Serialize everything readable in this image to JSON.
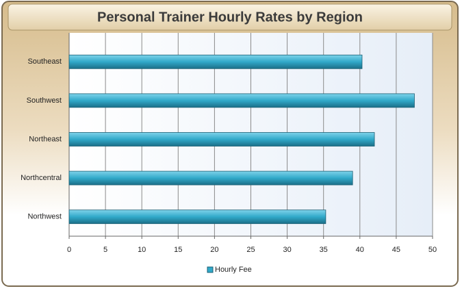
{
  "chart_data": {
    "type": "bar",
    "orientation": "horizontal",
    "title": "Personal Trainer Hourly Rates by Region",
    "categories": [
      "Southeast",
      "Southwest",
      "Northeast",
      "Northcentral",
      "Northwest"
    ],
    "series": [
      {
        "name": "Hourly Fee",
        "color": "#31a9c9",
        "values": [
          40.3,
          47.5,
          42,
          39,
          35.3
        ]
      }
    ],
    "xlim": [
      0,
      50
    ],
    "xticks": [
      0,
      5,
      10,
      15,
      20,
      25,
      30,
      35,
      40,
      45,
      50
    ],
    "grid": true,
    "legend": "bottom"
  }
}
